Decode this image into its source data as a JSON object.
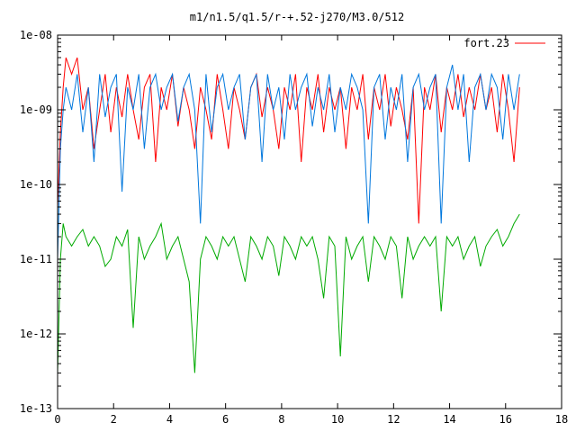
{
  "chart_data": {
    "type": "line",
    "title": "m1/n1.5/q1.5/r-+.52-j270/M3.0/512",
    "xlabel": "",
    "ylabel": "",
    "xlim": [
      0,
      18
    ],
    "ylim": [
      1e-13,
      1e-08
    ],
    "y_scale": "log",
    "x_ticks": [
      "0",
      "2",
      "4",
      "6",
      "8",
      "10",
      "12",
      "14",
      "16",
      "18"
    ],
    "x_tick_values": [
      0,
      2,
      4,
      6,
      8,
      10,
      12,
      14,
      16,
      18
    ],
    "y_ticks": [
      "1e-08",
      "1e-09",
      "1e-10",
      "1e-11",
      "1e-12",
      "1e-13"
    ],
    "y_tick_values": [
      1e-08,
      1e-09,
      1e-10,
      1e-11,
      1e-12,
      1e-13
    ],
    "grid": false,
    "legend_position": "top-right",
    "series": [
      {
        "name": "fort.23",
        "color": "#ff0000",
        "x": [
          0.0,
          0.1,
          0.2,
          0.3,
          0.5,
          0.7,
          0.9,
          1.1,
          1.3,
          1.5,
          1.7,
          1.9,
          2.1,
          2.3,
          2.5,
          2.7,
          2.9,
          3.1,
          3.3,
          3.5,
          3.7,
          3.9,
          4.1,
          4.3,
          4.5,
          4.7,
          4.9,
          5.1,
          5.3,
          5.5,
          5.7,
          5.9,
          6.1,
          6.3,
          6.5,
          6.7,
          6.9,
          7.1,
          7.3,
          7.5,
          7.7,
          7.9,
          8.1,
          8.3,
          8.5,
          8.7,
          8.9,
          9.1,
          9.3,
          9.5,
          9.7,
          9.9,
          10.1,
          10.3,
          10.5,
          10.7,
          10.9,
          11.1,
          11.3,
          11.5,
          11.7,
          11.9,
          12.1,
          12.3,
          12.5,
          12.7,
          12.9,
          13.1,
          13.3,
          13.5,
          13.7,
          13.9,
          14.1,
          14.3,
          14.5,
          14.7,
          14.9,
          15.1,
          15.3,
          15.5,
          15.7,
          15.9,
          16.1,
          16.3,
          16.5
        ],
        "y": [
          5e-11,
          5e-10,
          2e-09,
          5e-09,
          3e-09,
          5e-09,
          1e-09,
          2e-09,
          3e-10,
          1e-09,
          3e-09,
          5e-10,
          2e-09,
          8e-10,
          3e-09,
          1e-09,
          4e-10,
          2e-09,
          3e-09,
          2e-10,
          2e-09,
          1e-09,
          3e-09,
          6e-10,
          2e-09,
          1e-09,
          3e-10,
          2e-09,
          1e-09,
          4e-10,
          3e-09,
          1e-09,
          3e-10,
          2e-09,
          1e-09,
          4e-10,
          2e-09,
          3e-09,
          8e-10,
          2e-09,
          1e-09,
          3e-10,
          2e-09,
          1e-09,
          3e-09,
          2e-10,
          2e-09,
          1e-09,
          3e-09,
          5e-10,
          2e-09,
          1e-09,
          2e-09,
          3e-10,
          2e-09,
          1e-09,
          3e-09,
          4e-10,
          2e-09,
          1e-09,
          3e-09,
          6e-10,
          2e-09,
          1e-09,
          4e-10,
          2e-09,
          3e-11,
          2e-09,
          1e-09,
          3e-09,
          5e-10,
          2e-09,
          1e-09,
          3e-09,
          8e-10,
          2e-09,
          1e-09,
          3e-09,
          1e-09,
          2e-09,
          5e-10,
          3e-09,
          1e-09,
          2e-10,
          2e-09
        ]
      },
      {
        "name": "",
        "color": "#0077dd",
        "x": [
          0.0,
          0.1,
          0.2,
          0.3,
          0.5,
          0.7,
          0.9,
          1.1,
          1.3,
          1.5,
          1.7,
          1.9,
          2.1,
          2.3,
          2.5,
          2.7,
          2.9,
          3.1,
          3.3,
          3.5,
          3.7,
          3.9,
          4.1,
          4.3,
          4.5,
          4.7,
          4.9,
          5.1,
          5.3,
          5.5,
          5.7,
          5.9,
          6.1,
          6.3,
          6.5,
          6.7,
          6.9,
          7.1,
          7.3,
          7.5,
          7.7,
          7.9,
          8.1,
          8.3,
          8.5,
          8.7,
          8.9,
          9.1,
          9.3,
          9.5,
          9.7,
          9.9,
          10.1,
          10.3,
          10.5,
          10.7,
          10.9,
          11.1,
          11.3,
          11.5,
          11.7,
          11.9,
          12.1,
          12.3,
          12.5,
          12.7,
          12.9,
          13.1,
          13.3,
          13.5,
          13.7,
          13.9,
          14.1,
          14.3,
          14.5,
          14.7,
          14.9,
          15.1,
          15.3,
          15.5,
          15.7,
          15.9,
          16.1,
          16.3,
          16.5
        ],
        "y": [
          1e-11,
          3e-10,
          1e-09,
          2e-09,
          1e-09,
          3e-09,
          5e-10,
          2e-09,
          2e-10,
          3e-09,
          8e-10,
          2e-09,
          3e-09,
          8e-11,
          2e-09,
          1e-09,
          3e-09,
          3e-10,
          2e-09,
          3e-09,
          1e-09,
          2e-09,
          3e-09,
          7e-10,
          2e-09,
          3e-09,
          1e-09,
          3e-11,
          3e-09,
          5e-10,
          2e-09,
          3e-09,
          1e-09,
          2e-09,
          3e-09,
          4e-10,
          2e-09,
          3e-09,
          2e-10,
          3e-09,
          1e-09,
          2e-09,
          4e-10,
          3e-09,
          1e-09,
          2e-09,
          3e-09,
          6e-10,
          2e-09,
          1e-09,
          3e-09,
          5e-10,
          2e-09,
          1e-09,
          3e-09,
          2e-09,
          1e-09,
          3e-11,
          2e-09,
          3e-09,
          4e-10,
          2e-09,
          1e-09,
          3e-09,
          2e-10,
          2e-09,
          3e-09,
          1e-09,
          2e-09,
          3e-09,
          3e-11,
          2e-09,
          4e-09,
          1e-09,
          3e-09,
          2e-10,
          2e-09,
          3e-09,
          1e-09,
          3e-09,
          2e-09,
          4e-10,
          3e-09,
          1e-09,
          3e-09
        ]
      },
      {
        "name": "",
        "color": "#00aa00",
        "x": [
          0.0,
          0.1,
          0.2,
          0.3,
          0.5,
          0.7,
          0.9,
          1.1,
          1.3,
          1.5,
          1.7,
          1.9,
          2.1,
          2.3,
          2.5,
          2.7,
          2.9,
          3.1,
          3.3,
          3.5,
          3.7,
          3.9,
          4.1,
          4.3,
          4.5,
          4.7,
          4.9,
          5.1,
          5.3,
          5.5,
          5.7,
          5.9,
          6.1,
          6.3,
          6.5,
          6.7,
          6.9,
          7.1,
          7.3,
          7.5,
          7.7,
          7.9,
          8.1,
          8.3,
          8.5,
          8.7,
          8.9,
          9.1,
          9.3,
          9.5,
          9.7,
          9.9,
          10.1,
          10.3,
          10.5,
          10.7,
          10.9,
          11.1,
          11.3,
          11.5,
          11.7,
          11.9,
          12.1,
          12.3,
          12.5,
          12.7,
          12.9,
          13.1,
          13.3,
          13.5,
          13.7,
          13.9,
          14.1,
          14.3,
          14.5,
          14.7,
          14.9,
          15.1,
          15.3,
          15.5,
          15.7,
          15.9,
          16.1,
          16.3,
          16.5
        ],
        "y": [
          3e-13,
          1e-11,
          3e-11,
          2e-11,
          1.5e-11,
          2e-11,
          2.5e-11,
          1.5e-11,
          2e-11,
          1.5e-11,
          8e-12,
          1e-11,
          2e-11,
          1.5e-11,
          2.5e-11,
          1.2e-12,
          2e-11,
          1e-11,
          1.5e-11,
          2e-11,
          3e-11,
          1e-11,
          1.5e-11,
          2e-11,
          1e-11,
          5e-12,
          3e-13,
          1e-11,
          2e-11,
          1.5e-11,
          1e-11,
          2e-11,
          1.5e-11,
          2e-11,
          1e-11,
          5e-12,
          2e-11,
          1.5e-11,
          1e-11,
          2e-11,
          1.5e-11,
          6e-12,
          2e-11,
          1.5e-11,
          1e-11,
          2e-11,
          1.5e-11,
          2e-11,
          1e-11,
          3e-12,
          2e-11,
          1.5e-11,
          5e-13,
          2e-11,
          1e-11,
          1.5e-11,
          2e-11,
          5e-12,
          2e-11,
          1.5e-11,
          1e-11,
          2e-11,
          1.5e-11,
          3e-12,
          2e-11,
          1e-11,
          1.5e-11,
          2e-11,
          1.5e-11,
          2e-11,
          2e-12,
          2e-11,
          1.5e-11,
          2e-11,
          1e-11,
          1.5e-11,
          2e-11,
          8e-12,
          1.5e-11,
          2e-11,
          2.5e-11,
          1.5e-11,
          2e-11,
          3e-11,
          4e-11
        ]
      }
    ]
  }
}
